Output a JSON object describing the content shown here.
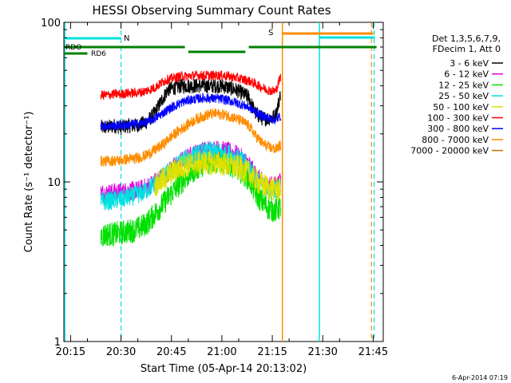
{
  "chart_data": {
    "type": "line",
    "title": "HESSI Observing Summary Count Rates",
    "xlabel": "Start Time (05-Apr-14 20:13:02)",
    "ylabel": "Count Rate (s⁻¹ detector⁻¹)",
    "yscale": "log",
    "ylim": [
      1,
      100
    ],
    "xlim_minutes": [
      0,
      95
    ],
    "xticks": [
      "20:15",
      "20:30",
      "20:45",
      "21:00",
      "21:15",
      "21:30",
      "21:45"
    ],
    "xtick_minutes": [
      2,
      17,
      32,
      47,
      62,
      77,
      92
    ],
    "yticks": [
      "1",
      "10",
      "100"
    ],
    "ytick_values": [
      1,
      10,
      100
    ],
    "legend_header": [
      "Det 1,3,5,6,7,9,",
      "FDecim 1, Att 0"
    ],
    "legend_placement": "right",
    "series": [
      {
        "name": "3 - 6 keV",
        "color": "#000000",
        "x": [
          11,
          13,
          15,
          17,
          19,
          21,
          23,
          25,
          27,
          30,
          31,
          33,
          35,
          37,
          39,
          41,
          43,
          45,
          47,
          49,
          51,
          53,
          55,
          56,
          57,
          59,
          61,
          63,
          64.5
        ],
        "values": [
          22,
          22,
          22.5,
          22,
          22.5,
          22.5,
          23,
          24,
          27,
          35,
          38,
          39,
          40,
          40,
          40,
          40,
          40,
          40,
          40,
          39,
          38,
          36,
          34,
          30,
          27,
          25,
          25,
          26,
          36
        ]
      },
      {
        "name": "6 - 12 keV",
        "color": "#e000e0",
        "x": [
          11,
          13,
          15,
          17,
          19,
          21,
          23,
          25,
          27,
          30,
          31,
          33,
          35,
          37,
          39,
          41,
          43,
          45,
          47,
          49,
          51,
          53,
          55,
          56,
          57,
          59,
          61,
          63,
          64.5
        ],
        "values": [
          8.5,
          8.5,
          8.6,
          8.6,
          8.8,
          8.8,
          9,
          9.4,
          10,
          11,
          11.5,
          12.5,
          13.5,
          14.3,
          15,
          15.5,
          16,
          16,
          15.8,
          15.5,
          15,
          14,
          13,
          12,
          11,
          10,
          9.5,
          9.5,
          10
        ]
      },
      {
        "name": "12 - 25 keV",
        "color": "#00e000",
        "x": [
          11,
          13,
          15,
          17,
          19,
          21,
          23,
          25,
          27,
          30,
          31,
          33,
          35,
          37,
          39,
          41,
          43,
          45,
          47,
          49,
          51,
          53,
          55,
          56,
          57,
          59,
          61,
          63,
          64.5
        ],
        "values": [
          4.6,
          4.7,
          4.7,
          4.8,
          4.9,
          5,
          5.2,
          5.6,
          6.3,
          7.5,
          8,
          9,
          10,
          11,
          12,
          12.8,
          13.2,
          13.5,
          13.4,
          13,
          12.4,
          11.5,
          10.5,
          9.5,
          8.5,
          7.5,
          6.8,
          6.6,
          7
        ]
      },
      {
        "name": "25 - 50 keV",
        "color": "#00e0e0",
        "x": [
          11,
          13,
          15,
          17,
          19,
          21,
          23,
          25,
          27,
          30,
          31,
          33,
          35,
          37,
          39,
          41,
          43,
          45,
          47,
          49,
          51,
          53,
          55,
          56,
          57,
          59,
          61,
          63,
          64.5
        ],
        "values": [
          7.5,
          7.6,
          7.7,
          7.8,
          8,
          8.2,
          8.5,
          9,
          9.8,
          11,
          11.5,
          12.5,
          13.5,
          14.2,
          14.8,
          15.2,
          15.5,
          15.5,
          15.3,
          15,
          14.4,
          13.6,
          12.6,
          11.6,
          10.6,
          9.6,
          9,
          9,
          9.5
        ]
      },
      {
        "name": "50 - 100 keV",
        "color": "#e0e000",
        "x": [
          27,
          30,
          31,
          33,
          35,
          37,
          39,
          41,
          43,
          45,
          47,
          49,
          51,
          53,
          55,
          56,
          57,
          59,
          61,
          63,
          64.5
        ],
        "values": [
          9.5,
          10.5,
          11,
          11.8,
          12.4,
          12.8,
          13,
          13.2,
          13.2,
          13.1,
          13,
          12.8,
          12.5,
          12,
          11.4,
          10.8,
          10.2,
          9.6,
          9.2,
          9,
          9
        ]
      },
      {
        "name": "100 - 300 keV",
        "color": "#ff0000",
        "x": [
          11,
          13,
          15,
          17,
          19,
          21,
          23,
          25,
          27,
          30,
          31,
          33,
          35,
          37,
          39,
          41,
          43,
          45,
          47,
          49,
          51,
          53,
          55,
          56,
          57,
          59,
          61,
          63,
          64.5
        ],
        "values": [
          35,
          35,
          35.5,
          35.5,
          36,
          36,
          36.5,
          37.5,
          39,
          43,
          44,
          45,
          46,
          46,
          46.5,
          46.5,
          46.5,
          46.5,
          46.5,
          46,
          45,
          44,
          43,
          42,
          41,
          39,
          37.5,
          37,
          46
        ]
      },
      {
        "name": "300 - 800 keV",
        "color": "#0000ff",
        "x": [
          11,
          13,
          15,
          17,
          19,
          21,
          23,
          25,
          27,
          30,
          31,
          33,
          35,
          37,
          39,
          41,
          43,
          45,
          47,
          49,
          51,
          53,
          55,
          56,
          57,
          59,
          61,
          63,
          64.5
        ],
        "values": [
          22.5,
          22.5,
          22.5,
          22.6,
          22.8,
          23,
          23.2,
          23.8,
          25,
          27.5,
          28.5,
          30,
          31.5,
          32.5,
          33,
          33.5,
          33.5,
          33.3,
          33,
          32.4,
          31.5,
          30.5,
          29.3,
          28.4,
          27.5,
          26,
          25,
          24.5,
          26
        ]
      },
      {
        "name": "800 - 7000 keV",
        "color": "#ff8c00",
        "x": [
          11,
          13,
          15,
          17,
          19,
          21,
          23,
          25,
          27,
          30,
          31,
          33,
          35,
          37,
          39,
          41,
          43,
          45,
          47,
          49,
          51,
          53,
          55,
          56,
          57,
          59,
          61,
          63,
          64.5
        ],
        "values": [
          13.5,
          13.5,
          13.6,
          13.7,
          13.9,
          14,
          14.3,
          14.9,
          15.8,
          17.5,
          18.5,
          20,
          21.5,
          23,
          24.5,
          25.5,
          26.5,
          26.8,
          26.5,
          26,
          25,
          24,
          22.5,
          21,
          19.5,
          17.5,
          16.5,
          16,
          17
        ]
      },
      {
        "name": "7000 - 20000 keV",
        "color": "#c07000",
        "x": [],
        "values": []
      }
    ],
    "annotations": [
      {
        "text": "RDO",
        "color": "#008000"
      },
      {
        "text": "RD6",
        "color": "#008000"
      },
      {
        "text": "N",
        "color": "#00e0e0"
      },
      {
        "text": "S",
        "color": "#ff8c00"
      }
    ]
  },
  "footer_timestamp": "6-Apr-2014 07:19"
}
